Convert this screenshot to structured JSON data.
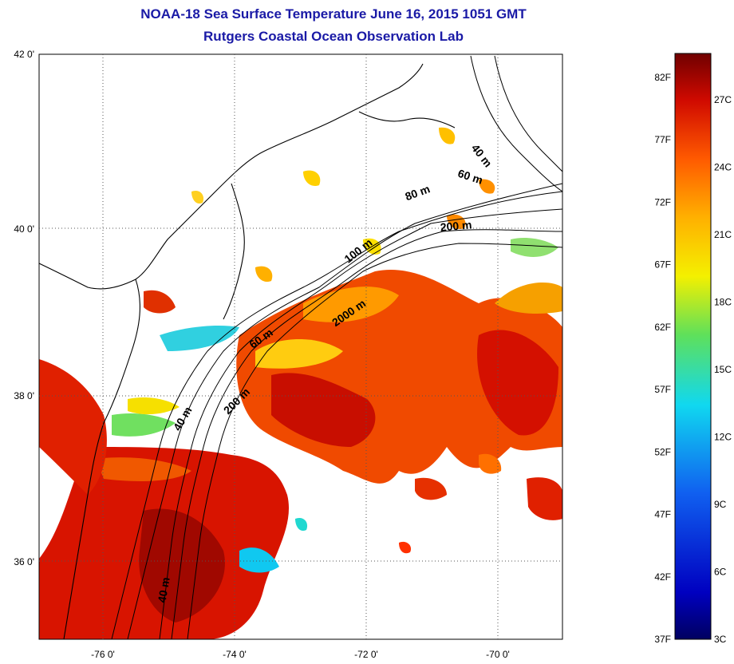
{
  "title": "NOAA-18 Sea Surface Temperature June 16, 2015 1051 GMT",
  "subtitle": "Rutgers Coastal Ocean Observation Lab",
  "map": {
    "lon_ticks": [
      "-76 0'",
      "-74 0'",
      "-72 0'",
      "-70 0'"
    ],
    "lat_ticks": [
      "42 0'",
      "40 0'",
      "38 0'",
      "36 0'"
    ],
    "contour_labels": [
      "40 m",
      "60 m",
      "80 m",
      "200 m",
      "100 m",
      "2000 m",
      "60 m",
      "200 m",
      "40 m",
      "40 m"
    ]
  },
  "colorbar": {
    "fahrenheit_labels": [
      "82F",
      "77F",
      "72F",
      "67F",
      "62F",
      "57F",
      "52F",
      "47F",
      "42F",
      "37F"
    ],
    "celsius_labels": [
      "27C",
      "24C",
      "21C",
      "18C",
      "15C",
      "12C",
      "9C",
      "6C",
      "3C"
    ],
    "colors": {
      "hot": "#7a0000",
      "red": "#e01400",
      "orange": "#ff8a00",
      "yellow": "#f4f000",
      "green": "#5fe05a",
      "cyan": "#10d8f0",
      "blue": "#1060f0",
      "navy": "#000080"
    }
  }
}
